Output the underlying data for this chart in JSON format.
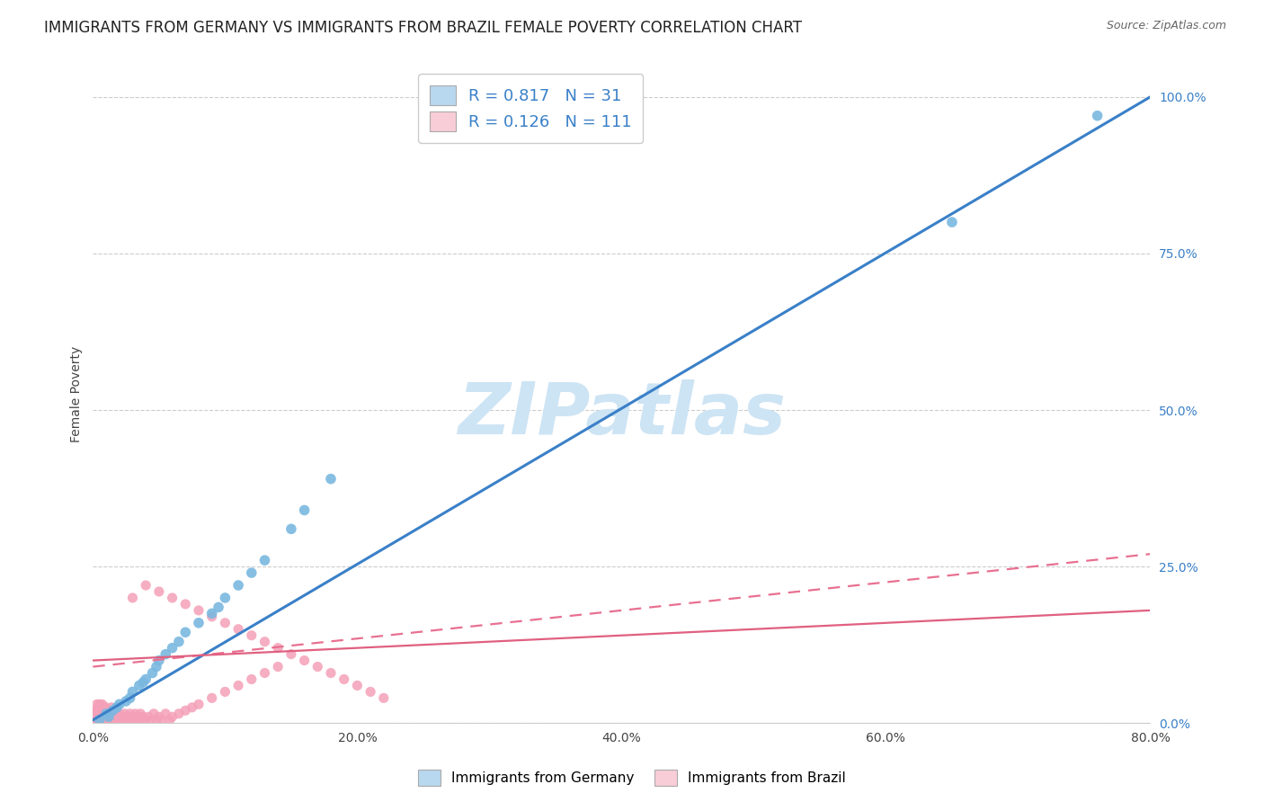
{
  "title": "IMMIGRANTS FROM GERMANY VS IMMIGRANTS FROM BRAZIL FEMALE POVERTY CORRELATION CHART",
  "source": "Source: ZipAtlas.com",
  "ylabel": "Female Poverty",
  "watermark": "ZIPatlas",
  "xlim": [
    0.0,
    0.8
  ],
  "ylim": [
    0.0,
    1.05
  ],
  "xticks": [
    0.0,
    0.2,
    0.4,
    0.6,
    0.8
  ],
  "yticks_right": [
    0.0,
    0.25,
    0.5,
    0.75,
    1.0
  ],
  "germany_R": 0.817,
  "germany_N": 31,
  "brazil_R": 0.126,
  "brazil_N": 111,
  "germany_scatter_color": "#7ab8e0",
  "germany_fill": "#b8d8ef",
  "brazil_scatter_color": "#f4a0b8",
  "brazil_fill": "#f9cdd7",
  "trend_germany_color": "#3a80c8",
  "trend_brazil_color_dashed": "#e87090",
  "trend_brazil_color_solid": "#e06080",
  "legend_text_color": "#3a80c8",
  "axis_color": "#444444",
  "grid_color": "#cccccc",
  "title_fontsize": 12,
  "axis_label_fontsize": 10,
  "tick_fontsize": 10,
  "legend_fontsize": 13,
  "legend_labels": [
    "Immigrants from Germany",
    "Immigrants from Brazil"
  ],
  "germany_scatter_x": [
    0.005,
    0.01,
    0.012,
    0.015,
    0.018,
    0.02,
    0.025,
    0.028,
    0.03,
    0.035,
    0.038,
    0.04,
    0.045,
    0.048,
    0.05,
    0.055,
    0.06,
    0.065,
    0.07,
    0.08,
    0.09,
    0.095,
    0.1,
    0.11,
    0.12,
    0.13,
    0.15,
    0.16,
    0.18,
    0.65,
    0.76
  ],
  "germany_scatter_y": [
    0.005,
    0.015,
    0.01,
    0.02,
    0.025,
    0.03,
    0.035,
    0.04,
    0.05,
    0.06,
    0.065,
    0.07,
    0.08,
    0.09,
    0.1,
    0.11,
    0.12,
    0.13,
    0.145,
    0.16,
    0.175,
    0.185,
    0.2,
    0.22,
    0.24,
    0.26,
    0.31,
    0.34,
    0.39,
    0.8,
    0.97
  ],
  "brazil_scatter_x_tight": [
    0.001,
    0.001,
    0.002,
    0.002,
    0.002,
    0.003,
    0.003,
    0.003,
    0.003,
    0.004,
    0.004,
    0.004,
    0.004,
    0.005,
    0.005,
    0.005,
    0.005,
    0.006,
    0.006,
    0.006,
    0.007,
    0.007,
    0.007,
    0.008,
    0.008,
    0.008,
    0.009,
    0.009,
    0.01,
    0.01,
    0.01,
    0.011,
    0.011,
    0.012,
    0.012,
    0.013,
    0.013,
    0.014,
    0.014,
    0.015,
    0.015,
    0.016,
    0.016,
    0.017,
    0.018,
    0.018,
    0.019,
    0.02,
    0.02,
    0.021,
    0.022,
    0.023,
    0.024,
    0.025,
    0.026,
    0.027,
    0.028,
    0.029,
    0.03,
    0.031,
    0.032,
    0.033,
    0.034,
    0.035,
    0.036,
    0.037,
    0.038,
    0.04,
    0.042,
    0.044,
    0.046,
    0.048,
    0.05,
    0.052,
    0.055,
    0.058,
    0.06,
    0.065,
    0.07,
    0.075,
    0.08,
    0.09,
    0.1,
    0.11,
    0.12,
    0.13,
    0.14,
    0.03,
    0.04,
    0.05,
    0.06,
    0.07,
    0.08,
    0.09,
    0.1,
    0.11,
    0.12,
    0.13,
    0.14,
    0.15,
    0.16,
    0.17,
    0.18,
    0.19,
    0.2,
    0.21,
    0.22
  ],
  "brazil_scatter_y_tight": [
    0.005,
    0.01,
    0.005,
    0.015,
    0.02,
    0.005,
    0.01,
    0.02,
    0.03,
    0.005,
    0.01,
    0.015,
    0.025,
    0.005,
    0.01,
    0.02,
    0.03,
    0.005,
    0.015,
    0.025,
    0.005,
    0.015,
    0.03,
    0.005,
    0.01,
    0.025,
    0.005,
    0.02,
    0.005,
    0.01,
    0.025,
    0.005,
    0.015,
    0.005,
    0.02,
    0.005,
    0.015,
    0.005,
    0.025,
    0.005,
    0.02,
    0.005,
    0.015,
    0.005,
    0.005,
    0.02,
    0.005,
    0.005,
    0.015,
    0.005,
    0.01,
    0.005,
    0.015,
    0.005,
    0.01,
    0.005,
    0.015,
    0.005,
    0.01,
    0.005,
    0.015,
    0.005,
    0.01,
    0.005,
    0.015,
    0.005,
    0.01,
    0.005,
    0.01,
    0.005,
    0.015,
    0.005,
    0.01,
    0.005,
    0.015,
    0.005,
    0.01,
    0.015,
    0.02,
    0.025,
    0.03,
    0.04,
    0.05,
    0.06,
    0.07,
    0.08,
    0.09,
    0.2,
    0.22,
    0.21,
    0.2,
    0.19,
    0.18,
    0.17,
    0.16,
    0.15,
    0.14,
    0.13,
    0.12,
    0.11,
    0.1,
    0.09,
    0.08,
    0.07,
    0.06,
    0.05,
    0.04
  ],
  "germany_trend_x0": 0.0,
  "germany_trend_y0": 0.005,
  "germany_trend_x1": 0.8,
  "germany_trend_y1": 1.0,
  "brazil_trend_dashed_x0": 0.0,
  "brazil_trend_dashed_y0": 0.09,
  "brazil_trend_dashed_x1": 0.8,
  "brazil_trend_dashed_y1": 0.27,
  "brazil_trend_solid_x0": 0.0,
  "brazil_trend_solid_y0": 0.1,
  "brazil_trend_solid_x1": 0.8,
  "brazil_trend_solid_y1": 0.18
}
